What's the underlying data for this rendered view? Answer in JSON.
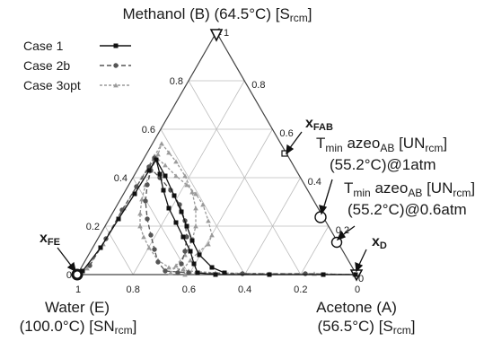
{
  "vertices": {
    "top": {
      "name": "Methanol (B) (64.5°C) [S",
      "sub": "rcm",
      "close": "]"
    },
    "left": {
      "line1": "Water (E)",
      "line2": "(100.0°C) [SN",
      "sub": "rcm",
      "close": "]"
    },
    "right": {
      "line1": "Acetone (A)",
      "line2": "(56.5°C) [S",
      "sub": "rcm",
      "close": "]"
    }
  },
  "axes": {
    "bottom_ticks": [
      "1",
      "0.8",
      "0.6",
      "0.4",
      "0.2",
      "0"
    ],
    "left_ticks": [
      "0",
      "0.2",
      "0.4",
      "0.6",
      "0.8",
      "1"
    ],
    "right_ticks": [
      "0",
      "0.2",
      "0.4",
      "0.6",
      "0.8",
      "1"
    ]
  },
  "legend": [
    {
      "label": "Case 1",
      "color": "#111111",
      "dash": "",
      "marker": "square"
    },
    {
      "label": "Case 2b",
      "color": "#555555",
      "dash": "5,3",
      "marker": "circle"
    },
    {
      "label": "Case 3opt",
      "color": "#9a9a9a",
      "dash": "3,2",
      "marker": "triangle"
    }
  ],
  "points": {
    "xFAB": {
      "label": "x",
      "sub": "FAB"
    },
    "xFE": {
      "label": "x",
      "sub": "FE"
    },
    "xD": {
      "label": "x",
      "sub": "D"
    }
  },
  "azeo": [
    {
      "T": "T",
      "Tsub": "min",
      "word": " azeo",
      "wsub": "AB",
      "bracket": " [UN",
      "bsub": "rcm",
      "close": "]",
      "line2": "(55.2°C)@1atm"
    },
    {
      "T": "T",
      "Tsub": "min",
      "word": " azeo",
      "wsub": "AB",
      "bracket": " [UN",
      "bsub": "rcm",
      "close": "]",
      "line2": "(55.2°C)@0.6atm"
    }
  ]
}
